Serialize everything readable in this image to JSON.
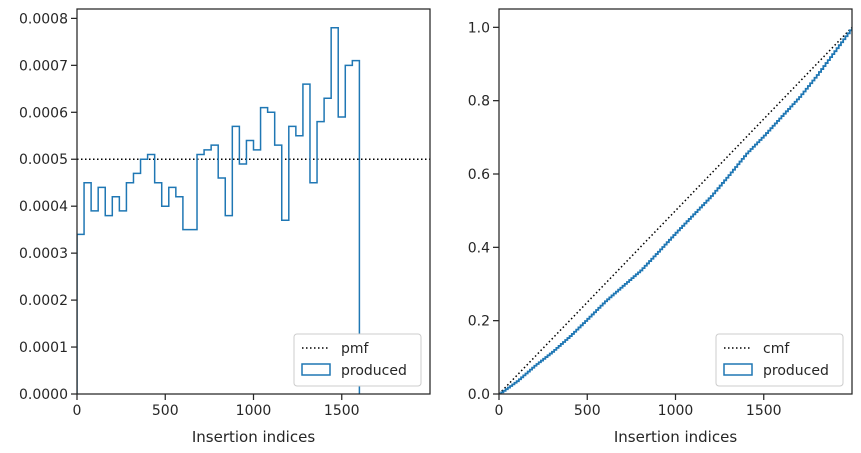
{
  "chart_data": [
    {
      "type": "histogram-step",
      "xlabel": "Insertion indices",
      "ylabel": "",
      "xlim": [
        0,
        2000
      ],
      "ylim": [
        0,
        0.00082
      ],
      "xticks": [
        0,
        500,
        1000,
        1500
      ],
      "yticks": [
        0,
        0.0001,
        0.0002,
        0.0003,
        0.0004,
        0.0005,
        0.0006,
        0.0007,
        0.0008
      ],
      "ytick_labels": [
        "0.0000",
        "0.0001",
        "0.0002",
        "0.0003",
        "0.0004",
        "0.0005",
        "0.0006",
        "0.0007",
        "0.0008"
      ],
      "bin_width": 40,
      "legend_position": "lower right",
      "series": [
        {
          "name": "pmf",
          "kind": "reference-line",
          "style": "dotted",
          "color": "#000000",
          "value": 0.0005
        },
        {
          "name": "produced",
          "kind": "step",
          "color": "#1f77b4",
          "values": [
            0.00034,
            0.00045,
            0.00039,
            0.00044,
            0.00038,
            0.00042,
            0.00039,
            0.00045,
            0.00047,
            0.0005,
            0.00051,
            0.00045,
            0.0004,
            0.00044,
            0.00042,
            0.00035,
            0.00035,
            0.00051,
            0.00052,
            0.00053,
            0.00046,
            0.00038,
            0.00057,
            0.00049,
            0.00054,
            0.00052,
            0.00061,
            0.0006,
            0.00053,
            0.00037,
            0.00057,
            0.00055,
            0.00066,
            0.00045,
            0.00058,
            0.00063,
            0.00078,
            0.00059,
            0.0007,
            0.00071
          ]
        }
      ]
    },
    {
      "type": "line",
      "xlabel": "Insertion indices",
      "ylabel": "",
      "xlim": [
        0,
        2000
      ],
      "ylim": [
        0,
        1.05
      ],
      "xticks": [
        0,
        500,
        1000,
        1500
      ],
      "yticks": [
        0,
        0.2,
        0.4,
        0.6,
        0.8,
        1.0
      ],
      "ytick_labels": [
        "0.0",
        "0.2",
        "0.4",
        "0.6",
        "0.8",
        "1.0"
      ],
      "legend_position": "lower right",
      "series": [
        {
          "name": "cmf",
          "kind": "line",
          "style": "dotted",
          "color": "#000000",
          "x": [
            0,
            2000
          ],
          "y": [
            0,
            1.0
          ]
        },
        {
          "name": "produced",
          "kind": "step",
          "color": "#1f77b4",
          "x": [
            0,
            100,
            200,
            300,
            400,
            500,
            600,
            700,
            800,
            900,
            1000,
            1100,
            1200,
            1300,
            1400,
            1500,
            1600,
            1700,
            1800,
            1900,
            2000
          ],
          "y": [
            0,
            0.035,
            0.077,
            0.115,
            0.158,
            0.205,
            0.253,
            0.295,
            0.337,
            0.388,
            0.44,
            0.49,
            0.54,
            0.597,
            0.656,
            0.705,
            0.758,
            0.81,
            0.87,
            0.935,
            1.0
          ]
        }
      ]
    }
  ]
}
